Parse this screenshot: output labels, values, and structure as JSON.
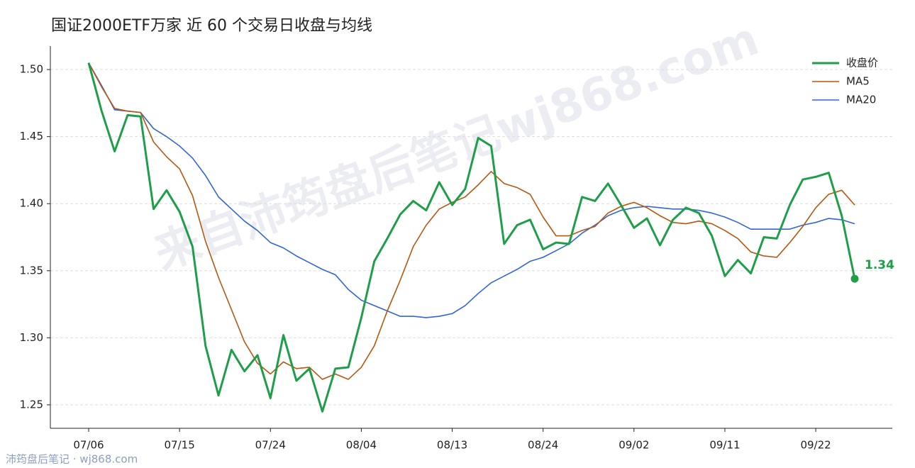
{
  "chart_data": {
    "type": "line",
    "title": "国证2000ETF万家 近 60 个交易日收盘与均线",
    "watermark": "来自沛筠盘后笔记wj868.com",
    "footer": "沛筠盘后笔记 · wj868.com",
    "annotation": "1.34",
    "categories": [
      "07/06",
      null,
      null,
      null,
      null,
      null,
      null,
      "07/15",
      null,
      null,
      null,
      null,
      null,
      null,
      "07/24",
      null,
      null,
      null,
      null,
      null,
      null,
      "08/04",
      null,
      null,
      null,
      null,
      null,
      null,
      "08/13",
      null,
      null,
      null,
      null,
      null,
      null,
      "08/24",
      null,
      null,
      null,
      null,
      null,
      null,
      "09/02",
      null,
      null,
      null,
      null,
      null,
      null,
      "09/11",
      null,
      null,
      null,
      null,
      null,
      null,
      "09/22",
      null,
      null,
      null
    ],
    "ylim": [
      1.2325,
      1.5175
    ],
    "yticks": [
      1.25,
      {
        "value": 1.3,
        "label": "1.30"
      },
      1.35,
      {
        "value": 1.4,
        "label": "1.40"
      },
      1.45,
      {
        "value": 1.5,
        "label": "1.50"
      }
    ],
    "grid": true,
    "legend": "upper right",
    "series": [
      {
        "name": "收盘价",
        "color": "#1e9e48",
        "values": [
          1.505,
          1.469,
          1.439,
          1.466,
          1.465,
          1.396,
          1.41,
          1.394,
          1.368,
          1.294,
          1.257,
          1.291,
          1.275,
          1.287,
          1.255,
          1.302,
          1.268,
          1.277,
          1.245,
          1.277,
          1.278,
          1.315,
          1.357,
          1.374,
          1.392,
          1.402,
          1.395,
          1.416,
          1.399,
          1.411,
          1.449,
          1.443,
          1.37,
          1.384,
          1.388,
          1.366,
          1.371,
          1.37,
          1.405,
          1.402,
          1.415,
          1.399,
          1.382,
          1.389,
          1.369,
          1.388,
          1.397,
          1.393,
          1.376,
          1.346,
          1.358,
          1.348,
          1.375,
          1.374,
          1.399,
          1.418,
          1.42,
          1.423,
          1.391,
          1.344
        ]
      },
      {
        "name": "MA5",
        "color": "#b8560f",
        "values": [
          1.505,
          1.487,
          1.471,
          1.469,
          1.468,
          1.446,
          1.435,
          1.426,
          1.406,
          1.372,
          1.345,
          1.321,
          1.297,
          1.281,
          1.273,
          1.282,
          1.277,
          1.278,
          1.269,
          1.273,
          1.269,
          1.278,
          1.294,
          1.32,
          1.343,
          1.368,
          1.384,
          1.396,
          1.401,
          1.405,
          1.414,
          1.424,
          1.415,
          1.412,
          1.407,
          1.39,
          1.376,
          1.376,
          1.38,
          1.383,
          1.393,
          1.398,
          1.401,
          1.397,
          1.391,
          1.386,
          1.385,
          1.387,
          1.385,
          1.38,
          1.374,
          1.364,
          1.361,
          1.36,
          1.371,
          1.383,
          1.397,
          1.407,
          1.41,
          1.399
        ]
      },
      {
        "name": "MA20",
        "color": "#2f66d9",
        "values": [
          1.505,
          1.488,
          1.47,
          1.469,
          1.468,
          1.456,
          1.45,
          1.443,
          1.434,
          1.421,
          1.405,
          1.396,
          1.387,
          1.38,
          1.371,
          1.367,
          1.361,
          1.356,
          1.351,
          1.347,
          1.336,
          1.328,
          1.324,
          1.32,
          1.316,
          1.316,
          1.315,
          1.316,
          1.318,
          1.324,
          1.333,
          1.341,
          1.346,
          1.351,
          1.357,
          1.36,
          1.365,
          1.37,
          1.378,
          1.384,
          1.391,
          1.395,
          1.397,
          1.398,
          1.397,
          1.396,
          1.396,
          1.395,
          1.393,
          1.39,
          1.386,
          1.381,
          1.381,
          1.381,
          1.381,
          1.384,
          1.386,
          1.389,
          1.388,
          1.385
        ]
      }
    ]
  }
}
